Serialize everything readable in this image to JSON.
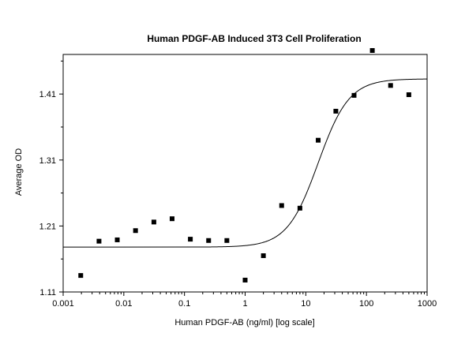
{
  "chart_data": {
    "type": "scatter",
    "title": "Human PDGF-AB Induced 3T3 Cell Proliferation",
    "xlabel": "Human PDGF-AB (ng/ml) [log scale]",
    "ylabel": "Average OD",
    "x_scale": "log",
    "xlim": [
      0.001,
      1000
    ],
    "ylim": [
      1.11,
      1.47
    ],
    "x_ticks": [
      0.001,
      0.01,
      0.1,
      1,
      10,
      100,
      1000
    ],
    "x_tick_labels": [
      "0.001",
      "0.01",
      "0.1",
      "1",
      "10",
      "100",
      "1000"
    ],
    "y_ticks": [
      1.11,
      1.21,
      1.31,
      1.41
    ],
    "y_tick_labels": [
      "1.11",
      "1.21",
      "1.31",
      "1.41"
    ],
    "grid": false,
    "series": [
      {
        "marker": "square",
        "color": "#000000",
        "points": [
          {
            "x": 0.00195,
            "y": 1.135
          },
          {
            "x": 0.0039,
            "y": 1.187
          },
          {
            "x": 0.0078,
            "y": 1.189
          },
          {
            "x": 0.0156,
            "y": 1.203
          },
          {
            "x": 0.0313,
            "y": 1.216
          },
          {
            "x": 0.0625,
            "y": 1.221
          },
          {
            "x": 0.125,
            "y": 1.19
          },
          {
            "x": 0.25,
            "y": 1.188
          },
          {
            "x": 0.5,
            "y": 1.188
          },
          {
            "x": 1,
            "y": 1.128
          },
          {
            "x": 2,
            "y": 1.165
          },
          {
            "x": 4,
            "y": 1.241
          },
          {
            "x": 8,
            "y": 1.237
          },
          {
            "x": 16,
            "y": 1.34
          },
          {
            "x": 31.3,
            "y": 1.384
          },
          {
            "x": 62.5,
            "y": 1.408
          },
          {
            "x": 125,
            "y": 1.476
          },
          {
            "x": 250,
            "y": 1.423
          },
          {
            "x": 500,
            "y": 1.409
          }
        ]
      },
      {
        "type": "line",
        "color": "#000000",
        "curve": "4PL",
        "bottom": 1.178,
        "top": 1.433,
        "ec50": 16,
        "hill": 1.7
      }
    ]
  }
}
